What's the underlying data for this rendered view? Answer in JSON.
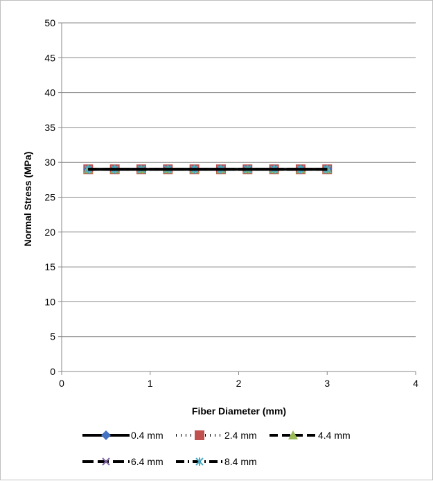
{
  "chart_data": {
    "type": "line",
    "title": "",
    "xlabel": "Fiber Diameter (mm)",
    "ylabel": "Normal Stress (MPa)",
    "xlim": [
      0,
      4
    ],
    "ylim": [
      0,
      50
    ],
    "xticks": [
      0,
      1,
      2,
      3,
      4
    ],
    "yticks": [
      0,
      5,
      10,
      15,
      20,
      25,
      30,
      35,
      40,
      45,
      50
    ],
    "grid": "horizontal",
    "legend_position": "bottom",
    "x": [
      0.3,
      0.6,
      0.9,
      1.2,
      1.5,
      1.8,
      2.1,
      2.4,
      2.7,
      3.0
    ],
    "series": [
      {
        "name": "0.4 mm",
        "values": [
          29,
          29,
          29,
          29,
          29,
          29,
          29,
          29,
          29,
          29
        ],
        "marker": "diamond",
        "color": "#4472C4",
        "line": "solid"
      },
      {
        "name": "2.4 mm",
        "values": [
          29,
          29,
          29,
          29,
          29,
          29,
          29,
          29,
          29,
          29
        ],
        "marker": "square",
        "color": "#C0504D",
        "line": "dotted"
      },
      {
        "name": "4.4 mm",
        "values": [
          29,
          29,
          29,
          29,
          29,
          29,
          29,
          29,
          29,
          29
        ],
        "marker": "triangle",
        "color": "#9BBB59",
        "line": "dashed"
      },
      {
        "name": "6.4 mm",
        "values": [
          29,
          29,
          29,
          29,
          29,
          29,
          29,
          29,
          29,
          29
        ],
        "marker": "x",
        "color": "#8064A2",
        "line": "long-dash"
      },
      {
        "name": "8.4 mm",
        "values": [
          29,
          29,
          29,
          29,
          29,
          29,
          29,
          29,
          29,
          29
        ],
        "marker": "asterisk",
        "color": "#4BACC6",
        "line": "dash-dot"
      }
    ]
  }
}
